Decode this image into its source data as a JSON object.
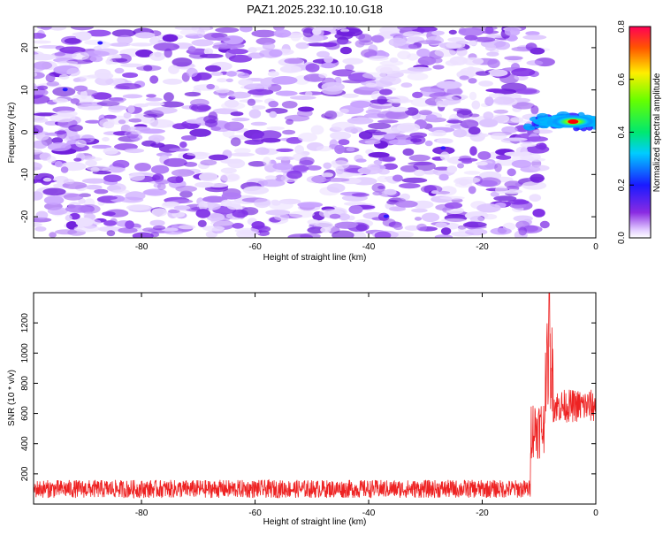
{
  "title": "PAZ1.2025.232.10.10.G18",
  "chart_data": [
    {
      "type": "heatmap",
      "xlabel": "Height of straight line (km)",
      "ylabel": "Frequency (Hz)",
      "xlim": [
        -99,
        0
      ],
      "ylim": [
        -25,
        25
      ],
      "xticks": [
        -80,
        -60,
        -40,
        -20,
        0
      ],
      "yticks": [
        -20,
        -10,
        0,
        10,
        20
      ],
      "colorbar": {
        "label": "Normalized spectral amplitude",
        "range": [
          0,
          0.8
        ],
        "ticks": [
          "0.0",
          "0.2",
          "0.4",
          "0.6",
          "0.8"
        ],
        "colormap": "rainbow"
      },
      "noise_extent_x": [
        -99,
        -10
      ],
      "signal": {
        "x_range": [
          -12,
          0
        ],
        "frequency_hz": 2.5,
        "peak_amplitude": 0.8,
        "peak_x": -4
      }
    },
    {
      "type": "line",
      "xlabel": "Height of straight line (km)",
      "ylabel": "SNR (10 * v/v)",
      "xlim": [
        -99,
        0
      ],
      "ylim": [
        0,
        1400
      ],
      "xticks": [
        -80,
        -60,
        -40,
        -20,
        0
      ],
      "yticks": [
        200,
        400,
        600,
        800,
        1000,
        1200
      ],
      "color": "#ee2222",
      "segments": [
        {
          "x_start": -99,
          "x_end": -11.5,
          "baseline": 100,
          "noise": 60
        },
        {
          "x_start": -11.5,
          "x_end": -9,
          "baseline": 500,
          "noise": 200
        },
        {
          "x_start": -9,
          "x_end": -7.5,
          "baseline": 900,
          "noise": 300
        },
        {
          "x_start": -7.5,
          "x_end": 0,
          "baseline": 650,
          "noise": 110
        }
      ],
      "peak": {
        "x": -8.2,
        "y": 1400
      }
    }
  ]
}
